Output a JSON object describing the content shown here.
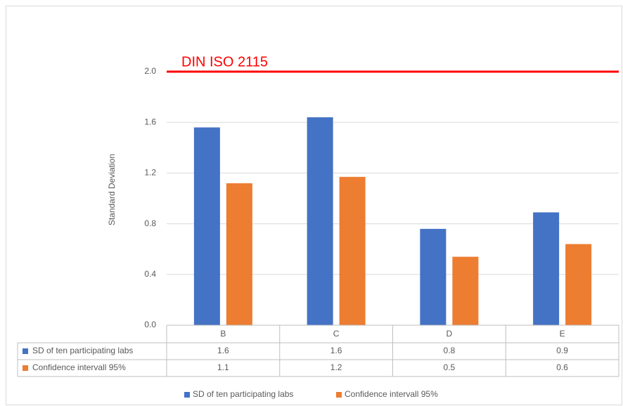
{
  "chart_data": {
    "type": "bar",
    "y_label": "Standard Deviation",
    "categories": [
      "B",
      "C",
      "D",
      "E"
    ],
    "series": [
      {
        "name": "SD of ten participating labs",
        "color": "#4472c4",
        "values": [
          1.56,
          1.64,
          0.76,
          0.89
        ],
        "value_labels": [
          "1.6",
          "1.6",
          "0.8",
          "0.9"
        ]
      },
      {
        "name": "Confidence intervall 95%",
        "color": "#ed7d31",
        "values": [
          1.12,
          1.17,
          0.54,
          0.64
        ],
        "value_labels": [
          "1.1",
          "1.2",
          "0.5",
          "0.6"
        ]
      }
    ],
    "ylim": [
      0,
      2.0
    ],
    "yticks": [
      {
        "value": 0,
        "label": "0.0"
      },
      0.4,
      0.8,
      1.2,
      1.6,
      {
        "value": 2,
        "label": "2.0"
      }
    ],
    "grid": true,
    "reference_line": {
      "text": "DIN ISO 2115",
      "value": 2,
      "color": "#ff0000"
    },
    "legend": "bottom",
    "data_table": true
  }
}
